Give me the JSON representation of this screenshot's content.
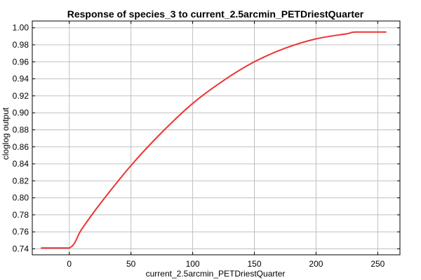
{
  "chart_data": {
    "type": "line",
    "title": "Response of species_3 to current_2.5arcmin_PETDriestQuarter",
    "xlabel": "current_2.5arcmin_PETDriestQuarter",
    "ylabel": "cloglog output",
    "xlim": [
      -30,
      268
    ],
    "ylim": [
      0.733,
      1.008
    ],
    "xticks": [
      0,
      50,
      100,
      150,
      200,
      250
    ],
    "yticks": [
      0.74,
      0.76,
      0.78,
      0.8,
      0.82,
      0.84,
      0.86,
      0.88,
      0.9,
      0.92,
      0.94,
      0.96,
      0.98,
      1.0
    ],
    "ytick_labels": [
      "0.74",
      "0.76",
      "0.78",
      "0.80",
      "0.82",
      "0.84",
      "0.86",
      "0.88",
      "0.90",
      "0.92",
      "0.94",
      "0.96",
      "0.98",
      "1.00"
    ],
    "grid": true,
    "line_color": "#ee3333",
    "series": [
      {
        "name": "",
        "x": [
          -23,
          0,
          10,
          25,
          50,
          75,
          100,
          125,
          150,
          175,
          200,
          225,
          232,
          257
        ],
        "y": [
          0.741,
          0.741,
          0.763,
          0.793,
          0.838,
          0.877,
          0.911,
          0.938,
          0.96,
          0.976,
          0.987,
          0.993,
          0.995,
          0.995
        ]
      }
    ]
  }
}
